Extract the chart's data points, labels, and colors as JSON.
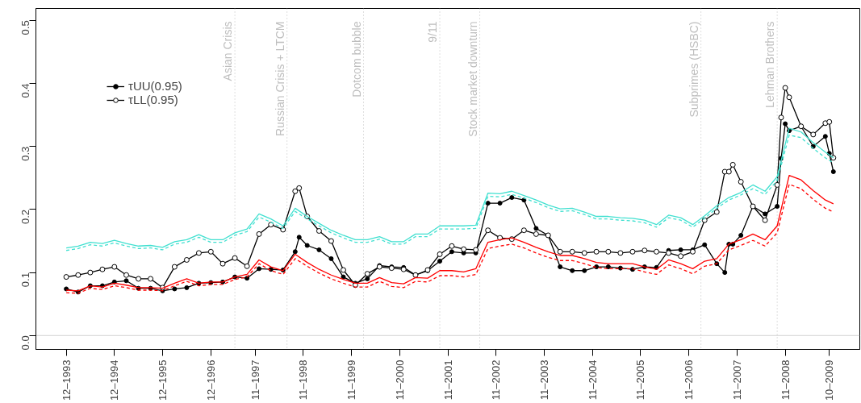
{
  "chart_data": {
    "type": "line",
    "x": [
      "1993-12",
      "1994-03",
      "1994-06",
      "1994-09",
      "1994-12",
      "1995-03",
      "1995-06",
      "1995-09",
      "1995-12",
      "1996-03",
      "1996-06",
      "1996-09",
      "1996-12",
      "1997-03",
      "1997-06",
      "1997-09",
      "1997-12",
      "1998-03",
      "1998-06",
      "1998-09",
      "1998-12",
      "1999-03",
      "1999-06",
      "1999-09",
      "1999-12",
      "2000-03",
      "2000-06",
      "2000-09",
      "2000-12",
      "2001-03",
      "2001-06",
      "2001-09",
      "2001-12",
      "2002-03",
      "2002-06",
      "2002-09",
      "2002-12",
      "2003-03",
      "2003-06",
      "2003-09",
      "2003-12",
      "2004-03",
      "2004-06",
      "2004-09",
      "2004-12",
      "2005-03",
      "2005-06",
      "2005-09",
      "2005-12",
      "2006-03",
      "2006-06",
      "2006-09",
      "2006-12",
      "2007-03",
      "2007-06",
      "2007-09",
      "2007-12",
      "2008-03",
      "2008-06",
      "2008-09",
      "2008-12",
      "2009-03",
      "2009-06",
      "2009-09",
      "2009-11"
    ],
    "series": [
      {
        "name": "τUU(0.95)",
        "color": "#000000",
        "marker": "circle",
        "line_style": "solid",
        "x": [
          "1993-12",
          "1994-03",
          "1994-06",
          "1994-09",
          "1994-12",
          "1995-03",
          "1995-06",
          "1995-09",
          "1995-12",
          "1996-03",
          "1996-06",
          "1996-09",
          "1996-12",
          "1997-03",
          "1997-06",
          "1997-09",
          "1997-12",
          "1998-03",
          "1998-06",
          "1998-09",
          "1998-10",
          "1998-12",
          "1999-03",
          "1999-06",
          "1999-09",
          "1999-12",
          "2000-03",
          "2000-06",
          "2000-09",
          "2000-12",
          "2001-03",
          "2001-06",
          "2001-09",
          "2001-12",
          "2002-03",
          "2002-06",
          "2002-09",
          "2002-12",
          "2003-03",
          "2003-06",
          "2003-09",
          "2003-12",
          "2004-03",
          "2004-06",
          "2004-09",
          "2004-12",
          "2005-03",
          "2005-06",
          "2005-09",
          "2005-12",
          "2006-03",
          "2006-06",
          "2006-09",
          "2006-12",
          "2007-03",
          "2007-06",
          "2007-08",
          "2007-09",
          "2007-10",
          "2007-12",
          "2008-03",
          "2008-06",
          "2008-09",
          "2008-10",
          "2008-11",
          "2008-12",
          "2009-03",
          "2009-06",
          "2009-09",
          "2009-10",
          "2009-11"
        ],
        "values": [
          0.074,
          0.069,
          0.079,
          0.079,
          0.085,
          0.087,
          0.075,
          0.075,
          0.071,
          0.074,
          0.076,
          0.083,
          0.084,
          0.085,
          0.093,
          0.091,
          0.106,
          0.105,
          0.104,
          0.133,
          0.156,
          0.143,
          0.136,
          0.122,
          0.093,
          0.083,
          0.09,
          0.111,
          0.109,
          0.108,
          0.096,
          0.103,
          0.118,
          0.133,
          0.131,
          0.131,
          0.21,
          0.21,
          0.219,
          0.215,
          0.17,
          0.159,
          0.109,
          0.103,
          0.103,
          0.109,
          0.109,
          0.107,
          0.105,
          0.109,
          0.108,
          0.135,
          0.136,
          0.136,
          0.144,
          0.114,
          0.1,
          0.145,
          0.145,
          0.159,
          0.205,
          0.193,
          0.205,
          0.281,
          0.336,
          0.325,
          0.332,
          0.3,
          0.316,
          0.289,
          0.26
        ]
      },
      {
        "name": "τLL(0.95)",
        "color": "#000000",
        "marker": "circle_open",
        "line_style": "solid",
        "x": [
          "1993-12",
          "1994-03",
          "1994-06",
          "1994-09",
          "1994-12",
          "1995-03",
          "1995-06",
          "1995-09",
          "1995-12",
          "1996-03",
          "1996-06",
          "1996-09",
          "1996-12",
          "1997-03",
          "1997-06",
          "1997-09",
          "1997-12",
          "1998-03",
          "1998-06",
          "1998-09",
          "1998-10",
          "1998-12",
          "1999-03",
          "1999-06",
          "1999-09",
          "1999-12",
          "2000-03",
          "2000-06",
          "2000-09",
          "2000-12",
          "2001-03",
          "2001-06",
          "2001-09",
          "2001-12",
          "2002-03",
          "2002-06",
          "2002-09",
          "2002-12",
          "2003-03",
          "2003-06",
          "2003-09",
          "2003-12",
          "2004-03",
          "2004-06",
          "2004-09",
          "2004-12",
          "2005-03",
          "2005-06",
          "2005-09",
          "2005-12",
          "2006-03",
          "2006-06",
          "2006-09",
          "2006-12",
          "2007-03",
          "2007-06",
          "2007-08",
          "2007-09",
          "2007-10",
          "2007-12",
          "2008-03",
          "2008-06",
          "2008-09",
          "2008-10",
          "2008-11",
          "2008-12",
          "2009-03",
          "2009-06",
          "2009-09",
          "2009-10",
          "2009-11"
        ],
        "values": [
          0.093,
          0.096,
          0.1,
          0.105,
          0.109,
          0.096,
          0.09,
          0.09,
          0.076,
          0.109,
          0.12,
          0.131,
          0.133,
          0.114,
          0.123,
          0.11,
          0.161,
          0.176,
          0.168,
          0.229,
          0.234,
          0.189,
          0.166,
          0.15,
          0.104,
          0.08,
          0.098,
          0.109,
          0.107,
          0.105,
          0.096,
          0.104,
          0.129,
          0.142,
          0.137,
          0.136,
          0.167,
          0.155,
          0.153,
          0.167,
          0.161,
          0.159,
          0.133,
          0.133,
          0.131,
          0.133,
          0.133,
          0.131,
          0.133,
          0.135,
          0.133,
          0.131,
          0.126,
          0.133,
          0.183,
          0.196,
          0.26,
          0.26,
          0.271,
          0.244,
          0.205,
          0.183,
          0.239,
          0.346,
          0.393,
          0.378,
          0.332,
          0.319,
          0.337,
          0.339,
          0.282
        ]
      },
      {
        "color": "#40e0d0",
        "marker": "none",
        "line_style": "solid",
        "values": [
          0.139,
          0.142,
          0.148,
          0.146,
          0.151,
          0.146,
          0.142,
          0.143,
          0.14,
          0.149,
          0.152,
          0.16,
          0.152,
          0.152,
          0.163,
          0.169,
          0.193,
          0.185,
          0.174,
          0.202,
          0.189,
          0.178,
          0.167,
          0.159,
          0.152,
          0.152,
          0.157,
          0.149,
          0.149,
          0.161,
          0.161,
          0.174,
          0.174,
          0.174,
          0.175,
          0.226,
          0.225,
          0.229,
          0.222,
          0.215,
          0.207,
          0.201,
          0.202,
          0.196,
          0.189,
          0.189,
          0.187,
          0.186,
          0.183,
          0.176,
          0.191,
          0.187,
          0.176,
          0.19,
          0.206,
          0.219,
          0.227,
          0.239,
          0.229,
          0.252,
          0.329,
          0.323,
          0.306,
          0.291,
          0.282
        ]
      },
      {
        "color": "#40e0d0",
        "marker": "none",
        "line_style": "dashed",
        "values": [
          0.135,
          0.138,
          0.144,
          0.142,
          0.147,
          0.142,
          0.138,
          0.139,
          0.136,
          0.145,
          0.148,
          0.156,
          0.148,
          0.148,
          0.159,
          0.165,
          0.188,
          0.18,
          0.17,
          0.197,
          0.185,
          0.174,
          0.163,
          0.155,
          0.148,
          0.148,
          0.153,
          0.145,
          0.145,
          0.157,
          0.157,
          0.169,
          0.169,
          0.169,
          0.17,
          0.221,
          0.22,
          0.224,
          0.218,
          0.211,
          0.203,
          0.197,
          0.198,
          0.192,
          0.185,
          0.185,
          0.183,
          0.182,
          0.179,
          0.172,
          0.187,
          0.183,
          0.172,
          0.186,
          0.202,
          0.215,
          0.223,
          0.233,
          0.224,
          0.246,
          0.318,
          0.314,
          0.297,
          0.282,
          0.274
        ]
      },
      {
        "color": "#ff0000",
        "marker": "none",
        "line_style": "solid",
        "values": [
          0.072,
          0.071,
          0.079,
          0.077,
          0.083,
          0.08,
          0.076,
          0.076,
          0.075,
          0.083,
          0.09,
          0.083,
          0.085,
          0.085,
          0.093,
          0.097,
          0.12,
          0.109,
          0.103,
          0.129,
          0.116,
          0.105,
          0.096,
          0.089,
          0.083,
          0.083,
          0.092,
          0.084,
          0.082,
          0.092,
          0.091,
          0.103,
          0.103,
          0.101,
          0.106,
          0.148,
          0.152,
          0.155,
          0.148,
          0.14,
          0.133,
          0.127,
          0.127,
          0.122,
          0.116,
          0.114,
          0.114,
          0.114,
          0.109,
          0.105,
          0.12,
          0.114,
          0.106,
          0.118,
          0.122,
          0.145,
          0.152,
          0.161,
          0.152,
          0.174,
          0.254,
          0.247,
          0.23,
          0.215,
          0.209
        ]
      },
      {
        "color": "#ff0000",
        "marker": "none",
        "line_style": "dashed",
        "values": [
          0.068,
          0.067,
          0.075,
          0.073,
          0.079,
          0.076,
          0.072,
          0.072,
          0.071,
          0.079,
          0.086,
          0.079,
          0.081,
          0.081,
          0.089,
          0.093,
          0.114,
          0.103,
          0.097,
          0.122,
          0.11,
          0.099,
          0.09,
          0.083,
          0.077,
          0.077,
          0.086,
          0.078,
          0.076,
          0.086,
          0.085,
          0.095,
          0.095,
          0.093,
          0.097,
          0.138,
          0.142,
          0.145,
          0.139,
          0.131,
          0.124,
          0.119,
          0.119,
          0.114,
          0.108,
          0.106,
          0.106,
          0.106,
          0.101,
          0.097,
          0.112,
          0.106,
          0.098,
          0.11,
          0.114,
          0.136,
          0.143,
          0.151,
          0.142,
          0.163,
          0.24,
          0.233,
          0.216,
          0.202,
          0.196
        ]
      }
    ],
    "xlim": [
      "1993-04-15",
      "2010-05-20"
    ],
    "xticks": [
      {
        "value": "1993-12",
        "label": "12–1993"
      },
      {
        "value": "1994-12",
        "label": "12–1994"
      },
      {
        "value": "1995-12",
        "label": "12–1995"
      },
      {
        "value": "1996-12",
        "label": "12–1996"
      },
      {
        "value": "1997-11",
        "label": "11–1997"
      },
      {
        "value": "1998-11",
        "label": "11–1998"
      },
      {
        "value": "1999-11",
        "label": "11–1999"
      },
      {
        "value": "2000-11",
        "label": "11–2000"
      },
      {
        "value": "2001-11",
        "label": "11–2001"
      },
      {
        "value": "2002-11",
        "label": "11–2002"
      },
      {
        "value": "2003-11",
        "label": "11–2003"
      },
      {
        "value": "2004-11",
        "label": "11–2004"
      },
      {
        "value": "2005-11",
        "label": "11–2005"
      },
      {
        "value": "2006-11",
        "label": "11–2006"
      },
      {
        "value": "2007-11",
        "label": "11–2007"
      },
      {
        "value": "2008-11",
        "label": "11–2008"
      },
      {
        "value": "2009-10",
        "label": "10–2009"
      }
    ],
    "ylim": [
      -0.022,
      0.519
    ],
    "yticks": [
      {
        "value": 0,
        "label": "0.0"
      },
      {
        "value": 0.1,
        "label": "0.1"
      },
      {
        "value": 0.2,
        "label": "0.2"
      },
      {
        "value": 0.3,
        "label": "0.3"
      },
      {
        "value": 0.4,
        "label": "0.4"
      },
      {
        "value": 0.5,
        "label": "0.5"
      }
    ],
    "ref_lines": [
      {
        "axis": "y",
        "value": 0,
        "label": null,
        "color": "#d3d3d3",
        "line_style": "solid"
      },
      {
        "axis": "x",
        "value": "1997-06",
        "label": "Asian Crisis",
        "color": "#bebebe",
        "line_style": "dotted"
      },
      {
        "axis": "x",
        "value": "1998-07",
        "label": "Russian Crisis + LTCM",
        "color": "#bebebe",
        "line_style": "dotted"
      },
      {
        "axis": "x",
        "value": "2000-02",
        "label": "Dotcom bubble",
        "color": "#bebebe",
        "line_style": "dotted"
      },
      {
        "axis": "x",
        "value": "2001-09",
        "label": "9/11",
        "color": "#bebebe",
        "line_style": "dotted"
      },
      {
        "axis": "x",
        "value": "2002-07",
        "label": "Stock market downturn",
        "color": "#bebebe",
        "line_style": "dotted"
      },
      {
        "axis": "x",
        "value": "2007-02",
        "label": "Subprimes (HSBC)",
        "color": "#bebebe",
        "line_style": "dotted"
      },
      {
        "axis": "x",
        "value": "2008-09",
        "label": "Lehman Brothers",
        "color": "#bebebe",
        "line_style": "dotted"
      }
    ],
    "legend": "top left",
    "grid": false
  }
}
